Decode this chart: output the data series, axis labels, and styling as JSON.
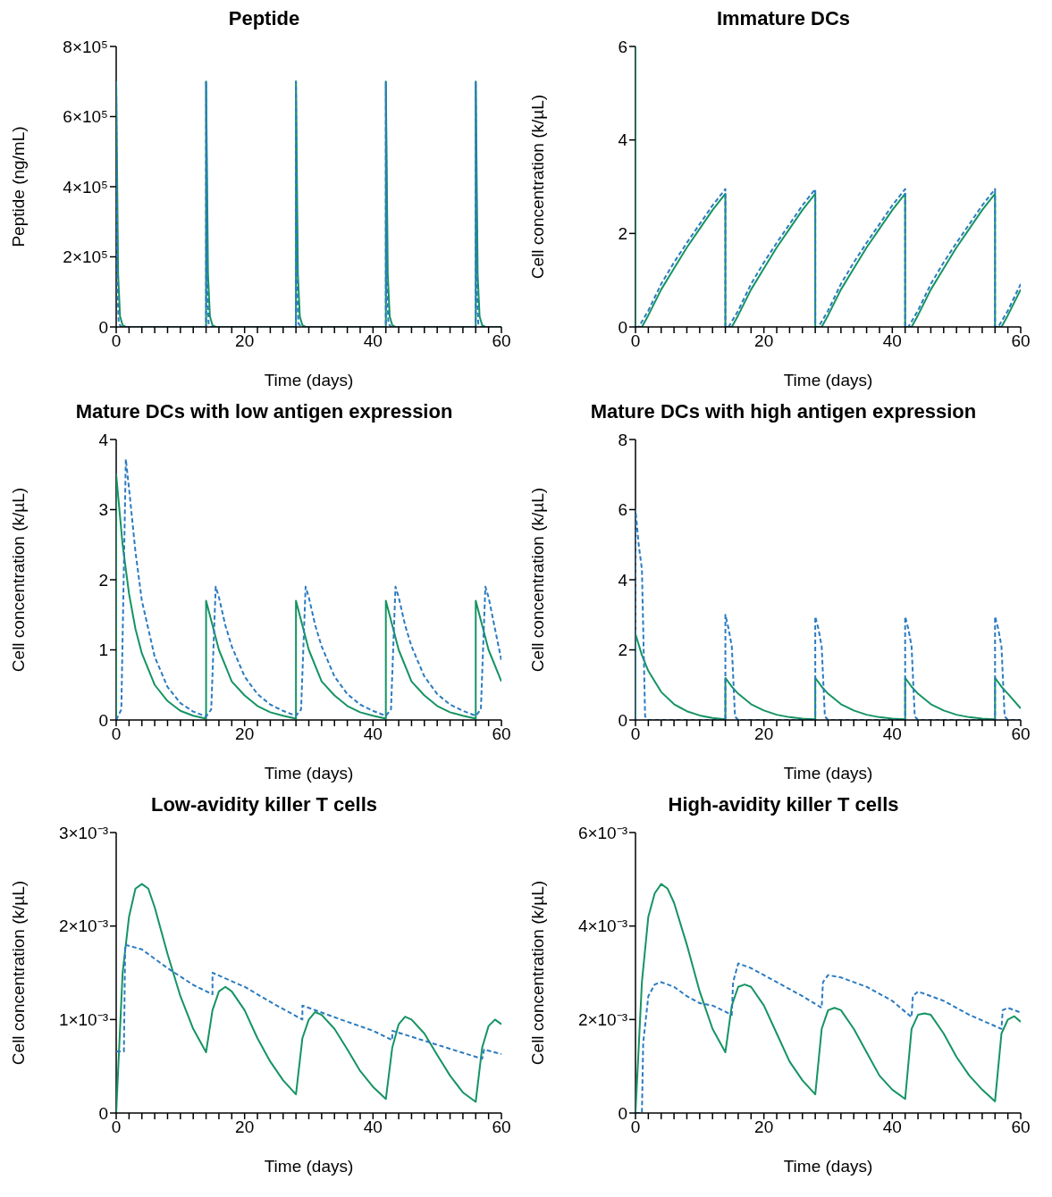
{
  "chart_data": [
    {
      "type": "line",
      "title": "Peptide",
      "xlabel": "Time (days)",
      "ylabel": "Peptide (ng/mL)",
      "marker": "none",
      "xlim": [
        0,
        60
      ],
      "ylim": [
        0,
        800000
      ],
      "xticks": [
        0,
        {
          "value": 2,
          "label": null
        },
        {
          "value": 4,
          "label": null
        },
        {
          "value": 6,
          "label": null
        },
        {
          "value": 8,
          "label": null
        },
        {
          "value": 10,
          "label": null
        },
        {
          "value": 12,
          "label": null
        },
        {
          "value": 14,
          "label": null
        },
        {
          "value": 16,
          "label": null
        },
        {
          "value": 18,
          "label": null
        },
        20,
        {
          "value": 22,
          "label": null
        },
        {
          "value": 24,
          "label": null
        },
        {
          "value": 26,
          "label": null
        },
        {
          "value": 28,
          "label": null
        },
        {
          "value": 30,
          "label": null
        },
        {
          "value": 32,
          "label": null
        },
        {
          "value": 34,
          "label": null
        },
        {
          "value": 36,
          "label": null
        },
        {
          "value": 38,
          "label": null
        },
        40,
        {
          "value": 42,
          "label": null
        },
        {
          "value": 44,
          "label": null
        },
        {
          "value": 46,
          "label": null
        },
        {
          "value": 48,
          "label": null
        },
        {
          "value": 50,
          "label": null
        },
        {
          "value": 52,
          "label": null
        },
        {
          "value": 54,
          "label": null
        },
        {
          "value": 56,
          "label": null
        },
        {
          "value": 58,
          "label": null
        },
        60
      ],
      "yticks": [
        0,
        {
          "value": 200000,
          "label": "2×10⁵"
        },
        {
          "value": 400000,
          "label": "4×10⁵"
        },
        {
          "value": 600000,
          "label": "6×10⁵"
        },
        {
          "value": 800000,
          "label": "8×10⁵"
        }
      ],
      "series": [
        {
          "color": "#159463",
          "line_style": "solid",
          "x": [
            0,
            0.3,
            0.6,
            1,
            1.5,
            14,
            14,
            14.3,
            14.6,
            15,
            15.5,
            28,
            28,
            28.3,
            28.6,
            29,
            29.5,
            42,
            42,
            42.3,
            42.6,
            43,
            43.5,
            56,
            56,
            56.3,
            56.6,
            57,
            57.5,
            60
          ],
          "values": [
            700000,
            150000,
            30000,
            5000,
            0,
            0,
            700000,
            150000,
            30000,
            5000,
            0,
            0,
            700000,
            150000,
            30000,
            5000,
            0,
            0,
            700000,
            150000,
            30000,
            5000,
            0,
            0,
            700000,
            150000,
            30000,
            5000,
            0,
            0
          ]
        },
        {
          "color": "#2b7bc0",
          "line_style": "dashed",
          "x": [
            0,
            0.2,
            0.4,
            0.8,
            14,
            14,
            14.2,
            14.4,
            14.8,
            28,
            28,
            28.2,
            28.4,
            28.8,
            42,
            42,
            42.2,
            42.4,
            42.8,
            56,
            56,
            56.2,
            56.4,
            56.8,
            60
          ],
          "values": [
            700000,
            100000,
            10000,
            0,
            0,
            700000,
            100000,
            10000,
            0,
            0,
            700000,
            100000,
            10000,
            0,
            0,
            700000,
            100000,
            10000,
            0,
            0,
            700000,
            100000,
            10000,
            0,
            0
          ]
        }
      ]
    },
    {
      "type": "line",
      "title": "Immature DCs",
      "xlabel": "Time (days)",
      "ylabel": "Cell concentration (k/µL)",
      "marker": "none",
      "xlim": [
        0,
        60
      ],
      "ylim": [
        0,
        6
      ],
      "xticks": [
        0,
        {
          "value": 2,
          "label": null
        },
        {
          "value": 4,
          "label": null
        },
        {
          "value": 6,
          "label": null
        },
        {
          "value": 8,
          "label": null
        },
        {
          "value": 10,
          "label": null
        },
        {
          "value": 12,
          "label": null
        },
        {
          "value": 14,
          "label": null
        },
        {
          "value": 16,
          "label": null
        },
        {
          "value": 18,
          "label": null
        },
        20,
        {
          "value": 22,
          "label": null
        },
        {
          "value": 24,
          "label": null
        },
        {
          "value": 26,
          "label": null
        },
        {
          "value": 28,
          "label": null
        },
        {
          "value": 30,
          "label": null
        },
        {
          "value": 32,
          "label": null
        },
        {
          "value": 34,
          "label": null
        },
        {
          "value": 36,
          "label": null
        },
        {
          "value": 38,
          "label": null
        },
        40,
        {
          "value": 42,
          "label": null
        },
        {
          "value": 44,
          "label": null
        },
        {
          "value": 46,
          "label": null
        },
        {
          "value": 48,
          "label": null
        },
        {
          "value": 50,
          "label": null
        },
        {
          "value": 52,
          "label": null
        },
        {
          "value": 54,
          "label": null
        },
        {
          "value": 56,
          "label": null
        },
        {
          "value": 58,
          "label": null
        },
        60
      ],
      "yticks": [
        0,
        2,
        4,
        6
      ],
      "series": [
        {
          "color": "#159463",
          "line_style": "solid",
          "x": [
            0,
            0,
            1,
            2,
            4,
            6,
            8,
            10,
            12,
            14,
            14,
            15,
            16,
            18,
            20,
            22,
            24,
            26,
            28,
            28,
            29,
            30,
            32,
            34,
            36,
            38,
            40,
            42,
            42,
            43,
            44,
            46,
            48,
            50,
            52,
            54,
            56,
            56,
            57,
            58,
            60
          ],
          "values": [
            6,
            0,
            0,
            0.25,
            0.8,
            1.25,
            1.7,
            2.1,
            2.5,
            2.85,
            0,
            0,
            0.25,
            0.8,
            1.25,
            1.7,
            2.1,
            2.5,
            2.85,
            0,
            0,
            0.25,
            0.8,
            1.25,
            1.7,
            2.1,
            2.5,
            2.85,
            0,
            0,
            0.25,
            0.8,
            1.25,
            1.7,
            2.1,
            2.5,
            2.85,
            0,
            0,
            0.25,
            0.8
          ]
        },
        {
          "color": "#2b7bc0",
          "line_style": "dashed",
          "x": [
            0,
            0.5,
            2,
            4,
            6,
            8,
            10,
            12,
            14,
            14,
            14.5,
            16,
            18,
            20,
            22,
            24,
            26,
            28,
            28,
            28.5,
            30,
            32,
            34,
            36,
            38,
            40,
            42,
            42,
            42.5,
            44,
            46,
            48,
            50,
            52,
            54,
            56,
            56,
            56.5,
            58,
            60
          ],
          "values": [
            0,
            0,
            0.35,
            0.92,
            1.38,
            1.8,
            2.2,
            2.6,
            2.95,
            0,
            0,
            0.35,
            0.92,
            1.38,
            1.8,
            2.2,
            2.6,
            2.95,
            0,
            0,
            0.35,
            0.92,
            1.38,
            1.8,
            2.2,
            2.6,
            2.95,
            0,
            0,
            0.35,
            0.92,
            1.38,
            1.8,
            2.2,
            2.6,
            2.95,
            0,
            0,
            0.35,
            0.92
          ]
        }
      ]
    },
    {
      "type": "line",
      "title": "Mature DCs with low antigen expression",
      "xlabel": "Time (days)",
      "ylabel": "Cell concentration (k/µL)",
      "marker": "none",
      "xlim": [
        0,
        60
      ],
      "ylim": [
        0,
        4
      ],
      "xticks": [
        0,
        {
          "value": 2,
          "label": null
        },
        {
          "value": 4,
          "label": null
        },
        {
          "value": 6,
          "label": null
        },
        {
          "value": 8,
          "label": null
        },
        {
          "value": 10,
          "label": null
        },
        {
          "value": 12,
          "label": null
        },
        {
          "value": 14,
          "label": null
        },
        {
          "value": 16,
          "label": null
        },
        {
          "value": 18,
          "label": null
        },
        20,
        {
          "value": 22,
          "label": null
        },
        {
          "value": 24,
          "label": null
        },
        {
          "value": 26,
          "label": null
        },
        {
          "value": 28,
          "label": null
        },
        {
          "value": 30,
          "label": null
        },
        {
          "value": 32,
          "label": null
        },
        {
          "value": 34,
          "label": null
        },
        {
          "value": 36,
          "label": null
        },
        {
          "value": 38,
          "label": null
        },
        40,
        {
          "value": 42,
          "label": null
        },
        {
          "value": 44,
          "label": null
        },
        {
          "value": 46,
          "label": null
        },
        {
          "value": 48,
          "label": null
        },
        {
          "value": 50,
          "label": null
        },
        {
          "value": 52,
          "label": null
        },
        {
          "value": 54,
          "label": null
        },
        {
          "value": 56,
          "label": null
        },
        {
          "value": 58,
          "label": null
        },
        60
      ],
      "yticks": [
        0,
        1,
        2,
        3,
        4
      ],
      "series": [
        {
          "color": "#159463",
          "line_style": "solid",
          "x": [
            0,
            0,
            1,
            2,
            3,
            4,
            6,
            8,
            10,
            12,
            14,
            14,
            15,
            16,
            18,
            20,
            22,
            24,
            26,
            28,
            28,
            29,
            30,
            32,
            34,
            36,
            38,
            40,
            42,
            42,
            43,
            44,
            46,
            48,
            50,
            52,
            54,
            56,
            56,
            57,
            58,
            60
          ],
          "values": [
            0,
            3.5,
            2.5,
            1.8,
            1.3,
            0.95,
            0.5,
            0.27,
            0.13,
            0.06,
            0.02,
            1.7,
            1.35,
            1.0,
            0.55,
            0.35,
            0.2,
            0.11,
            0.06,
            0.02,
            1.7,
            1.35,
            1.0,
            0.55,
            0.35,
            0.2,
            0.11,
            0.06,
            0.02,
            1.7,
            1.35,
            1.0,
            0.55,
            0.35,
            0.2,
            0.11,
            0.06,
            0.02,
            1.7,
            1.35,
            1.0,
            0.55
          ]
        },
        {
          "color": "#2b7bc0",
          "line_style": "dashed",
          "x": [
            0,
            0.8,
            1.5,
            2,
            3,
            4,
            6,
            8,
            10,
            12,
            14,
            14.8,
            15.5,
            16,
            17,
            18,
            20,
            22,
            24,
            26,
            28,
            28.8,
            29.5,
            30,
            31,
            32,
            34,
            36,
            38,
            40,
            42,
            42.8,
            43.5,
            44,
            45,
            46,
            48,
            50,
            52,
            54,
            56,
            56.8,
            57.5,
            58,
            59,
            60
          ],
          "values": [
            0,
            0.15,
            3.72,
            3.3,
            2.4,
            1.7,
            0.9,
            0.47,
            0.24,
            0.12,
            0.05,
            0.15,
            1.9,
            1.75,
            1.35,
            1.05,
            0.62,
            0.37,
            0.22,
            0.13,
            0.06,
            0.15,
            1.9,
            1.75,
            1.35,
            1.05,
            0.62,
            0.37,
            0.22,
            0.13,
            0.06,
            0.15,
            1.9,
            1.75,
            1.35,
            1.05,
            0.62,
            0.37,
            0.22,
            0.13,
            0.06,
            0.15,
            1.9,
            1.75,
            1.3,
            0.85
          ]
        }
      ]
    },
    {
      "type": "line",
      "title": "Mature DCs with high antigen expression",
      "xlabel": "Time (days)",
      "ylabel": "Cell concentration (k/µL)",
      "marker": "none",
      "xlim": [
        0,
        60
      ],
      "ylim": [
        0,
        8
      ],
      "xticks": [
        0,
        {
          "value": 2,
          "label": null
        },
        {
          "value": 4,
          "label": null
        },
        {
          "value": 6,
          "label": null
        },
        {
          "value": 8,
          "label": null
        },
        {
          "value": 10,
          "label": null
        },
        {
          "value": 12,
          "label": null
        },
        {
          "value": 14,
          "label": null
        },
        {
          "value": 16,
          "label": null
        },
        {
          "value": 18,
          "label": null
        },
        20,
        {
          "value": 22,
          "label": null
        },
        {
          "value": 24,
          "label": null
        },
        {
          "value": 26,
          "label": null
        },
        {
          "value": 28,
          "label": null
        },
        {
          "value": 30,
          "label": null
        },
        {
          "value": 32,
          "label": null
        },
        {
          "value": 34,
          "label": null
        },
        {
          "value": 36,
          "label": null
        },
        {
          "value": 38,
          "label": null
        },
        40,
        {
          "value": 42,
          "label": null
        },
        {
          "value": 44,
          "label": null
        },
        {
          "value": 46,
          "label": null
        },
        {
          "value": 48,
          "label": null
        },
        {
          "value": 50,
          "label": null
        },
        {
          "value": 52,
          "label": null
        },
        {
          "value": 54,
          "label": null
        },
        {
          "value": 56,
          "label": null
        },
        {
          "value": 58,
          "label": null
        },
        60
      ],
      "yticks": [
        0,
        2,
        4,
        6,
        8
      ],
      "series": [
        {
          "color": "#159463",
          "line_style": "solid",
          "x": [
            0,
            0,
            1,
            2,
            4,
            6,
            8,
            10,
            12,
            14,
            14,
            15,
            16,
            18,
            20,
            22,
            24,
            26,
            28,
            28,
            29,
            30,
            32,
            34,
            36,
            38,
            40,
            42,
            42,
            43,
            44,
            46,
            48,
            50,
            52,
            54,
            56,
            56,
            57,
            58,
            60
          ],
          "values": [
            0,
            2.45,
            1.85,
            1.4,
            0.8,
            0.45,
            0.25,
            0.13,
            0.06,
            0.02,
            1.2,
            0.95,
            0.75,
            0.45,
            0.27,
            0.15,
            0.08,
            0.04,
            0.02,
            1.2,
            0.95,
            0.75,
            0.45,
            0.27,
            0.15,
            0.08,
            0.04,
            0.02,
            1.2,
            0.95,
            0.75,
            0.45,
            0.27,
            0.15,
            0.08,
            0.04,
            0.02,
            1.2,
            0.95,
            0.75,
            0.33
          ]
        },
        {
          "color": "#2b7bc0",
          "line_style": "dashed",
          "x": [
            0,
            0,
            0.5,
            1,
            1.5,
            2,
            14,
            14,
            14.5,
            15,
            15.5,
            16,
            28,
            28,
            28.5,
            29,
            29.5,
            30,
            42,
            42,
            42.5,
            43,
            43.5,
            44,
            56,
            56,
            56.5,
            57,
            57.5,
            58,
            60
          ],
          "values": [
            0,
            6,
            5,
            4.3,
            0.1,
            0,
            0,
            3,
            2.6,
            2.1,
            0.1,
            0,
            0,
            2.95,
            2.6,
            2.1,
            0.1,
            0,
            0,
            2.95,
            2.6,
            2.1,
            0.1,
            0,
            0,
            2.95,
            2.6,
            2.1,
            0.1,
            0,
            0
          ]
        }
      ]
    },
    {
      "type": "line",
      "title": "Low-avidity killer T cells",
      "xlabel": "Time (days)",
      "ylabel": "Cell concentration (k/µL)",
      "marker": "none",
      "xlim": [
        0,
        60
      ],
      "ylim": [
        0,
        0.003
      ],
      "xticks": [
        0,
        {
          "value": 2,
          "label": null
        },
        {
          "value": 4,
          "label": null
        },
        {
          "value": 6,
          "label": null
        },
        {
          "value": 8,
          "label": null
        },
        {
          "value": 10,
          "label": null
        },
        {
          "value": 12,
          "label": null
        },
        {
          "value": 14,
          "label": null
        },
        {
          "value": 16,
          "label": null
        },
        {
          "value": 18,
          "label": null
        },
        20,
        {
          "value": 22,
          "label": null
        },
        {
          "value": 24,
          "label": null
        },
        {
          "value": 26,
          "label": null
        },
        {
          "value": 28,
          "label": null
        },
        {
          "value": 30,
          "label": null
        },
        {
          "value": 32,
          "label": null
        },
        {
          "value": 34,
          "label": null
        },
        {
          "value": 36,
          "label": null
        },
        {
          "value": 38,
          "label": null
        },
        40,
        {
          "value": 42,
          "label": null
        },
        {
          "value": 44,
          "label": null
        },
        {
          "value": 46,
          "label": null
        },
        {
          "value": 48,
          "label": null
        },
        {
          "value": 50,
          "label": null
        },
        {
          "value": 52,
          "label": null
        },
        {
          "value": 54,
          "label": null
        },
        {
          "value": 56,
          "label": null
        },
        {
          "value": 58,
          "label": null
        },
        60
      ],
      "yticks": [
        0,
        {
          "value": 0.001,
          "label": "1×10⁻³"
        },
        {
          "value": 0.002,
          "label": "2×10⁻³"
        },
        {
          "value": 0.003,
          "label": "3×10⁻³"
        }
      ],
      "series": [
        {
          "color": "#159463",
          "line_style": "solid",
          "x": [
            0,
            1,
            2,
            3,
            4,
            5,
            6,
            8,
            10,
            12,
            14,
            15,
            16,
            17,
            18,
            20,
            22,
            24,
            26,
            28,
            29,
            30,
            31,
            32,
            34,
            36,
            38,
            40,
            42,
            43,
            44,
            45,
            46,
            48,
            50,
            52,
            54,
            56,
            57,
            58,
            59,
            60
          ],
          "values": [
            0,
            0.0015,
            0.0021,
            0.0024,
            0.00245,
            0.0024,
            0.0022,
            0.0017,
            0.00125,
            0.0009,
            0.00065,
            0.0011,
            0.0013,
            0.00135,
            0.0013,
            0.0011,
            0.0008,
            0.00055,
            0.00035,
            0.0002,
            0.0008,
            0.001,
            0.00108,
            0.00105,
            0.0009,
            0.00068,
            0.00045,
            0.00028,
            0.00015,
            0.0007,
            0.00095,
            0.00103,
            0.001,
            0.00085,
            0.00062,
            0.0004,
            0.00022,
            0.00012,
            0.0007,
            0.00093,
            0.001,
            0.00095
          ]
        },
        {
          "color": "#2b7bc0",
          "line_style": "dashed",
          "x": [
            0,
            1.2,
            1.4,
            4,
            8,
            12,
            15,
            15,
            20,
            25,
            29,
            29,
            35,
            40,
            43,
            43,
            50,
            57,
            57.3,
            60
          ],
          "values": [
            0.00066,
            0.00066,
            0.0018,
            0.00175,
            0.00155,
            0.00137,
            0.00127,
            0.0015,
            0.00135,
            0.00115,
            0.001,
            0.00115,
            0.001,
            0.00088,
            0.00078,
            0.00088,
            0.00073,
            0.00058,
            0.00068,
            0.00063
          ]
        }
      ]
    },
    {
      "type": "line",
      "title": "High-avidity killer T cells",
      "xlabel": "Time (days)",
      "ylabel": "Cell concentration (k/µL)",
      "marker": "none",
      "xlim": [
        0,
        60
      ],
      "ylim": [
        0,
        0.006
      ],
      "xticks": [
        0,
        {
          "value": 2,
          "label": null
        },
        {
          "value": 4,
          "label": null
        },
        {
          "value": 6,
          "label": null
        },
        {
          "value": 8,
          "label": null
        },
        {
          "value": 10,
          "label": null
        },
        {
          "value": 12,
          "label": null
        },
        {
          "value": 14,
          "label": null
        },
        {
          "value": 16,
          "label": null
        },
        {
          "value": 18,
          "label": null
        },
        20,
        {
          "value": 22,
          "label": null
        },
        {
          "value": 24,
          "label": null
        },
        {
          "value": 26,
          "label": null
        },
        {
          "value": 28,
          "label": null
        },
        {
          "value": 30,
          "label": null
        },
        {
          "value": 32,
          "label": null
        },
        {
          "value": 34,
          "label": null
        },
        {
          "value": 36,
          "label": null
        },
        {
          "value": 38,
          "label": null
        },
        40,
        {
          "value": 42,
          "label": null
        },
        {
          "value": 44,
          "label": null
        },
        {
          "value": 46,
          "label": null
        },
        {
          "value": 48,
          "label": null
        },
        {
          "value": 50,
          "label": null
        },
        {
          "value": 52,
          "label": null
        },
        {
          "value": 54,
          "label": null
        },
        {
          "value": 56,
          "label": null
        },
        {
          "value": 58,
          "label": null
        },
        60
      ],
      "yticks": [
        0,
        {
          "value": 0.002,
          "label": "2×10⁻³"
        },
        {
          "value": 0.004,
          "label": "4×10⁻³"
        },
        {
          "value": 0.006,
          "label": "6×10⁻³"
        }
      ],
      "series": [
        {
          "color": "#159463",
          "line_style": "solid",
          "x": [
            0,
            1,
            2,
            3,
            4,
            5,
            6,
            8,
            10,
            12,
            14,
            15,
            16,
            17,
            18,
            20,
            22,
            24,
            26,
            28,
            29,
            30,
            31,
            32,
            34,
            36,
            38,
            40,
            42,
            43,
            44,
            45,
            46,
            48,
            50,
            52,
            54,
            56,
            57,
            58,
            59,
            60
          ],
          "values": [
            0,
            0.0028,
            0.0042,
            0.0047,
            0.0049,
            0.0048,
            0.0045,
            0.0036,
            0.0026,
            0.0018,
            0.0013,
            0.0023,
            0.0027,
            0.00275,
            0.0027,
            0.0023,
            0.0017,
            0.0011,
            0.0007,
            0.0004,
            0.0018,
            0.0022,
            0.00225,
            0.0022,
            0.0018,
            0.0013,
            0.0008,
            0.0005,
            0.0003,
            0.0018,
            0.0021,
            0.00213,
            0.0021,
            0.0017,
            0.0012,
            0.0008,
            0.0005,
            0.00025,
            0.0017,
            0.002,
            0.00207,
            0.00195
          ]
        },
        {
          "color": "#2b7bc0",
          "line_style": "dashed",
          "x": [
            0,
            1,
            1.2,
            2,
            3,
            4,
            6,
            8,
            10,
            12,
            15,
            15.2,
            16,
            18,
            22,
            26,
            29,
            29.2,
            30,
            32,
            36,
            40,
            43,
            43.2,
            44,
            48,
            52,
            57,
            57.2,
            58,
            60
          ],
          "values": [
            0,
            0,
            0.0015,
            0.0025,
            0.00275,
            0.0028,
            0.0027,
            0.0025,
            0.00235,
            0.0023,
            0.0021,
            0.0028,
            0.0032,
            0.0031,
            0.0028,
            0.0025,
            0.00225,
            0.0028,
            0.00295,
            0.0029,
            0.0027,
            0.0024,
            0.00205,
            0.0025,
            0.0026,
            0.0024,
            0.0021,
            0.0018,
            0.0022,
            0.00225,
            0.00215
          ]
        }
      ]
    }
  ]
}
